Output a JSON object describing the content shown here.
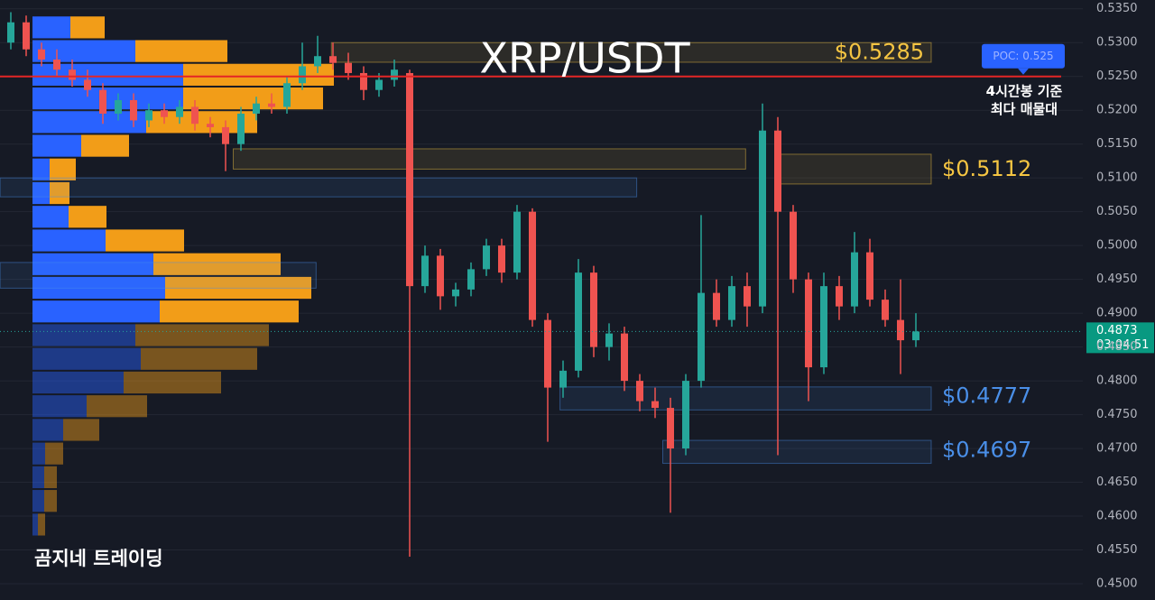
{
  "chart_data": {
    "type": "candlestick",
    "title": "XRP/USDT",
    "watermark": "곰지네 트레이딩",
    "up_color": "#26a69a",
    "down_color": "#ef5350",
    "ylim": [
      0.4476,
      0.5363
    ],
    "yticks": [
      {
        "value": 0.45,
        "label": "0.4500"
      },
      {
        "value": 0.455,
        "label": "0.4550"
      },
      {
        "value": 0.46,
        "label": "0.4600"
      },
      {
        "value": 0.465,
        "label": "0.4650"
      },
      {
        "value": 0.47,
        "label": "0.4700"
      },
      {
        "value": 0.475,
        "label": "0.4750"
      },
      {
        "value": 0.48,
        "label": "0.4800"
      },
      {
        "value": 0.485,
        "label": "0.4850"
      },
      {
        "value": 0.49,
        "label": "0.4900"
      },
      {
        "value": 0.495,
        "label": "0.4950"
      },
      {
        "value": 0.5,
        "label": "0.5000"
      },
      {
        "value": 0.505,
        "label": "0.5050"
      },
      {
        "value": 0.51,
        "label": "0.5100"
      },
      {
        "value": 0.515,
        "label": "0.5150"
      },
      {
        "value": 0.52,
        "label": "0.5200"
      },
      {
        "value": 0.525,
        "label": "0.5250"
      },
      {
        "value": 0.53,
        "label": "0.5300"
      },
      {
        "value": 0.535,
        "label": "0.5350"
      }
    ],
    "grid": true,
    "ohlc": [
      [
        0.53,
        0.5345,
        0.529,
        0.533
      ],
      [
        0.533,
        0.534,
        0.528,
        0.529
      ],
      [
        0.529,
        0.53,
        0.5265,
        0.5275
      ],
      [
        0.5275,
        0.529,
        0.525,
        0.526
      ],
      [
        0.526,
        0.5275,
        0.5235,
        0.5245
      ],
      [
        0.5245,
        0.526,
        0.522,
        0.523
      ],
      [
        0.523,
        0.524,
        0.518,
        0.5195
      ],
      [
        0.5195,
        0.5225,
        0.5185,
        0.5215
      ],
      [
        0.5215,
        0.5225,
        0.5175,
        0.5185
      ],
      [
        0.5185,
        0.521,
        0.5175,
        0.52
      ],
      [
        0.52,
        0.521,
        0.518,
        0.519
      ],
      [
        0.519,
        0.5215,
        0.518,
        0.5205
      ],
      [
        0.5205,
        0.5215,
        0.517,
        0.518
      ],
      [
        0.518,
        0.519,
        0.516,
        0.5175
      ],
      [
        0.5175,
        0.5185,
        0.511,
        0.515
      ],
      [
        0.515,
        0.5205,
        0.514,
        0.5195
      ],
      [
        0.5195,
        0.522,
        0.5185,
        0.521
      ],
      [
        0.521,
        0.5225,
        0.5195,
        0.5205
      ],
      [
        0.5205,
        0.525,
        0.5195,
        0.524
      ],
      [
        0.524,
        0.53,
        0.523,
        0.5265
      ],
      [
        0.5265,
        0.531,
        0.5255,
        0.528
      ],
      [
        0.528,
        0.53,
        0.526,
        0.527
      ],
      [
        0.527,
        0.5285,
        0.5245,
        0.5255
      ],
      [
        0.5255,
        0.5265,
        0.5215,
        0.523
      ],
      [
        0.523,
        0.5255,
        0.522,
        0.5245
      ],
      [
        0.5245,
        0.5275,
        0.5235,
        0.526
      ],
      [
        0.5255,
        0.526,
        0.454,
        0.494
      ],
      [
        0.494,
        0.5,
        0.493,
        0.4985
      ],
      [
        0.4985,
        0.4995,
        0.4905,
        0.4925
      ],
      [
        0.4925,
        0.4945,
        0.491,
        0.4935
      ],
      [
        0.4935,
        0.4975,
        0.4925,
        0.4965
      ],
      [
        0.4965,
        0.501,
        0.4955,
        0.5
      ],
      [
        0.5,
        0.501,
        0.4945,
        0.496
      ],
      [
        0.496,
        0.506,
        0.495,
        0.505
      ],
      [
        0.505,
        0.5055,
        0.488,
        0.489
      ],
      [
        0.489,
        0.49,
        0.471,
        0.479
      ],
      [
        0.479,
        0.483,
        0.4775,
        0.4815
      ],
      [
        0.4815,
        0.498,
        0.4805,
        0.496
      ],
      [
        0.496,
        0.497,
        0.4835,
        0.485
      ],
      [
        0.485,
        0.4885,
        0.483,
        0.487
      ],
      [
        0.487,
        0.488,
        0.4785,
        0.48
      ],
      [
        0.48,
        0.481,
        0.4755,
        0.477
      ],
      [
        0.477,
        0.479,
        0.4745,
        0.476
      ],
      [
        0.476,
        0.4775,
        0.4605,
        0.47
      ],
      [
        0.47,
        0.481,
        0.469,
        0.48
      ],
      [
        0.48,
        0.5045,
        0.479,
        0.493
      ],
      [
        0.493,
        0.495,
        0.488,
        0.489
      ],
      [
        0.489,
        0.4955,
        0.488,
        0.494
      ],
      [
        0.494,
        0.496,
        0.488,
        0.491
      ],
      [
        0.491,
        0.521,
        0.49,
        0.517
      ],
      [
        0.517,
        0.519,
        0.469,
        0.505
      ],
      [
        0.505,
        0.506,
        0.493,
        0.495
      ],
      [
        0.495,
        0.496,
        0.477,
        0.482
      ],
      [
        0.482,
        0.496,
        0.481,
        0.494
      ],
      [
        0.494,
        0.4955,
        0.489,
        0.491
      ],
      [
        0.491,
        0.502,
        0.49,
        0.499
      ],
      [
        0.499,
        0.501,
        0.491,
        0.492
      ],
      [
        0.492,
        0.4935,
        0.488,
        0.489
      ],
      [
        0.489,
        0.495,
        0.481,
        0.486
      ],
      [
        0.486,
        0.49,
        0.485,
        0.4873
      ]
    ],
    "volume_profile": {
      "bins": [
        0.534,
        0.5305,
        0.527,
        0.5235,
        0.52,
        0.5165,
        0.513,
        0.5095,
        0.506,
        0.5025,
        0.499,
        0.4955,
        0.492,
        0.4885,
        0.485,
        0.4815,
        0.478,
        0.4745,
        0.471,
        0.4675,
        0.464,
        0.4605,
        0.457
      ],
      "up": [
        42,
        114,
        167,
        167,
        126,
        54,
        19,
        19,
        40,
        81,
        134,
        147,
        141,
        114,
        120,
        101,
        60,
        34,
        14,
        13,
        13,
        6
      ],
      "down": [
        38,
        102,
        167,
        155,
        123,
        53,
        29,
        22,
        42,
        87,
        141,
        162,
        154,
        148,
        129,
        108,
        67,
        40,
        20,
        14,
        14,
        8
      ],
      "up_color": "#2962ff",
      "down_color": "#f29d18",
      "value_area_low": 0.4885
    },
    "levels": [
      {
        "value": 0.5285,
        "label": "$0.5285",
        "top": 0.53,
        "bottom": 0.5271,
        "start": 20.9,
        "end": 60,
        "color": "#f5c542",
        "label_inside": true
      },
      {
        "value": 0.5112,
        "label": "$0.5112",
        "top": 0.5135,
        "bottom": 0.5091,
        "start": 50,
        "end": 60,
        "color": "#f5c542",
        "label_inside": false
      },
      {
        "value": 0.4777,
        "label": "$0.4777",
        "top": 0.4791,
        "bottom": 0.4757,
        "start": 35.8,
        "end": 60,
        "color": "#4a8fe8",
        "label_inside": false
      },
      {
        "value": 0.4697,
        "label": "$0.4697",
        "top": 0.4712,
        "bottom": 0.4678,
        "start": 42.5,
        "end": 60,
        "color": "#4a8fe8",
        "label_inside": false
      }
    ],
    "zones": [
      {
        "top": 0.5143,
        "bottom": 0.5113,
        "start": 14.5,
        "end": 47.9,
        "color": "#f5c542"
      },
      {
        "top": 0.51,
        "bottom": 0.5072,
        "start": -0.7,
        "end": 40.8,
        "color": "#4a8fe8"
      },
      {
        "top": 0.4975,
        "bottom": 0.4937,
        "start": -0.7,
        "end": 19.9,
        "color": "#4a8fe8"
      }
    ],
    "poc": {
      "value": 0.525,
      "label": "POC: 0.525",
      "note": [
        "4시간봉 기준",
        "최다 매물대"
      ],
      "color": "#e32626"
    },
    "last_price": {
      "value": 0.4873,
      "label": "0.4873",
      "countdown": "03:04:51"
    }
  }
}
